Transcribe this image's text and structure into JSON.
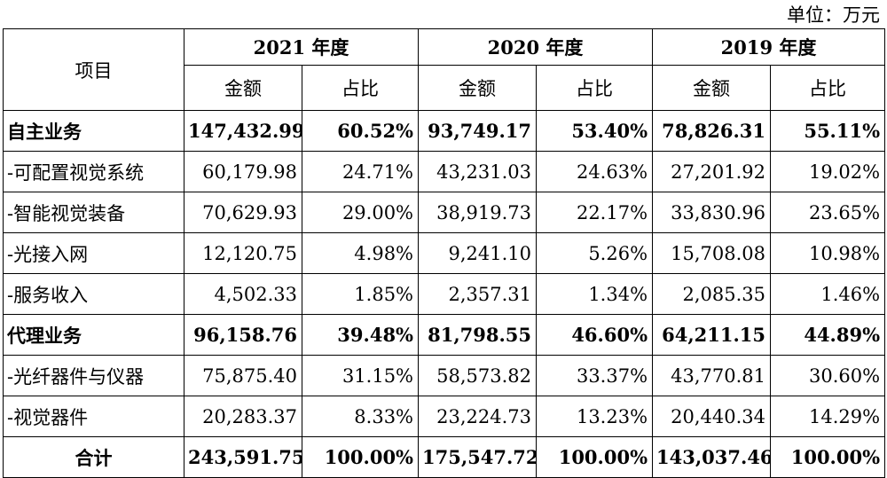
{
  "unit_label": "单位：万元",
  "header": {
    "item_label": "项目",
    "years": [
      "2021 年度",
      "2020 年度",
      "2019 年度"
    ],
    "amount_label": "金额",
    "ratio_label": "占比"
  },
  "rows": [
    {
      "name": "自主业务",
      "bold": true,
      "cells": [
        "147,432.99",
        "60.52%",
        "93,749.17",
        "53.40%",
        "78,826.31",
        "55.11%"
      ]
    },
    {
      "name": "-可配置视觉系统",
      "bold": false,
      "cells": [
        "60,179.98",
        "24.71%",
        "43,231.03",
        "24.63%",
        "27,201.92",
        "19.02%"
      ]
    },
    {
      "name": "-智能视觉装备",
      "bold": false,
      "cells": [
        "70,629.93",
        "29.00%",
        "38,919.73",
        "22.17%",
        "33,830.96",
        "23.65%"
      ]
    },
    {
      "name": "-光接入网",
      "bold": false,
      "cells": [
        "12,120.75",
        "4.98%",
        "9,241.10",
        "5.26%",
        "15,708.08",
        "10.98%"
      ]
    },
    {
      "name": "-服务收入",
      "bold": false,
      "cells": [
        "4,502.33",
        "1.85%",
        "2,357.31",
        "1.34%",
        "2,085.35",
        "1.46%"
      ]
    },
    {
      "name": "代理业务",
      "bold": true,
      "cells": [
        "96,158.76",
        "39.48%",
        "81,798.55",
        "46.60%",
        "64,211.15",
        "44.89%"
      ]
    },
    {
      "name": "-光纤器件与仪器",
      "bold": false,
      "cells": [
        "75,875.40",
        "31.15%",
        "58,573.82",
        "33.37%",
        "43,770.81",
        "30.60%"
      ]
    },
    {
      "name": "-视觉器件",
      "bold": false,
      "cells": [
        "20,283.37",
        "8.33%",
        "23,224.73",
        "13.23%",
        "20,440.34",
        "14.29%"
      ]
    }
  ],
  "total": {
    "name": "合计",
    "cells": [
      "243,591.75",
      "100.00%",
      "175,547.72",
      "100.00%",
      "143,037.46",
      "100.00%"
    ]
  }
}
